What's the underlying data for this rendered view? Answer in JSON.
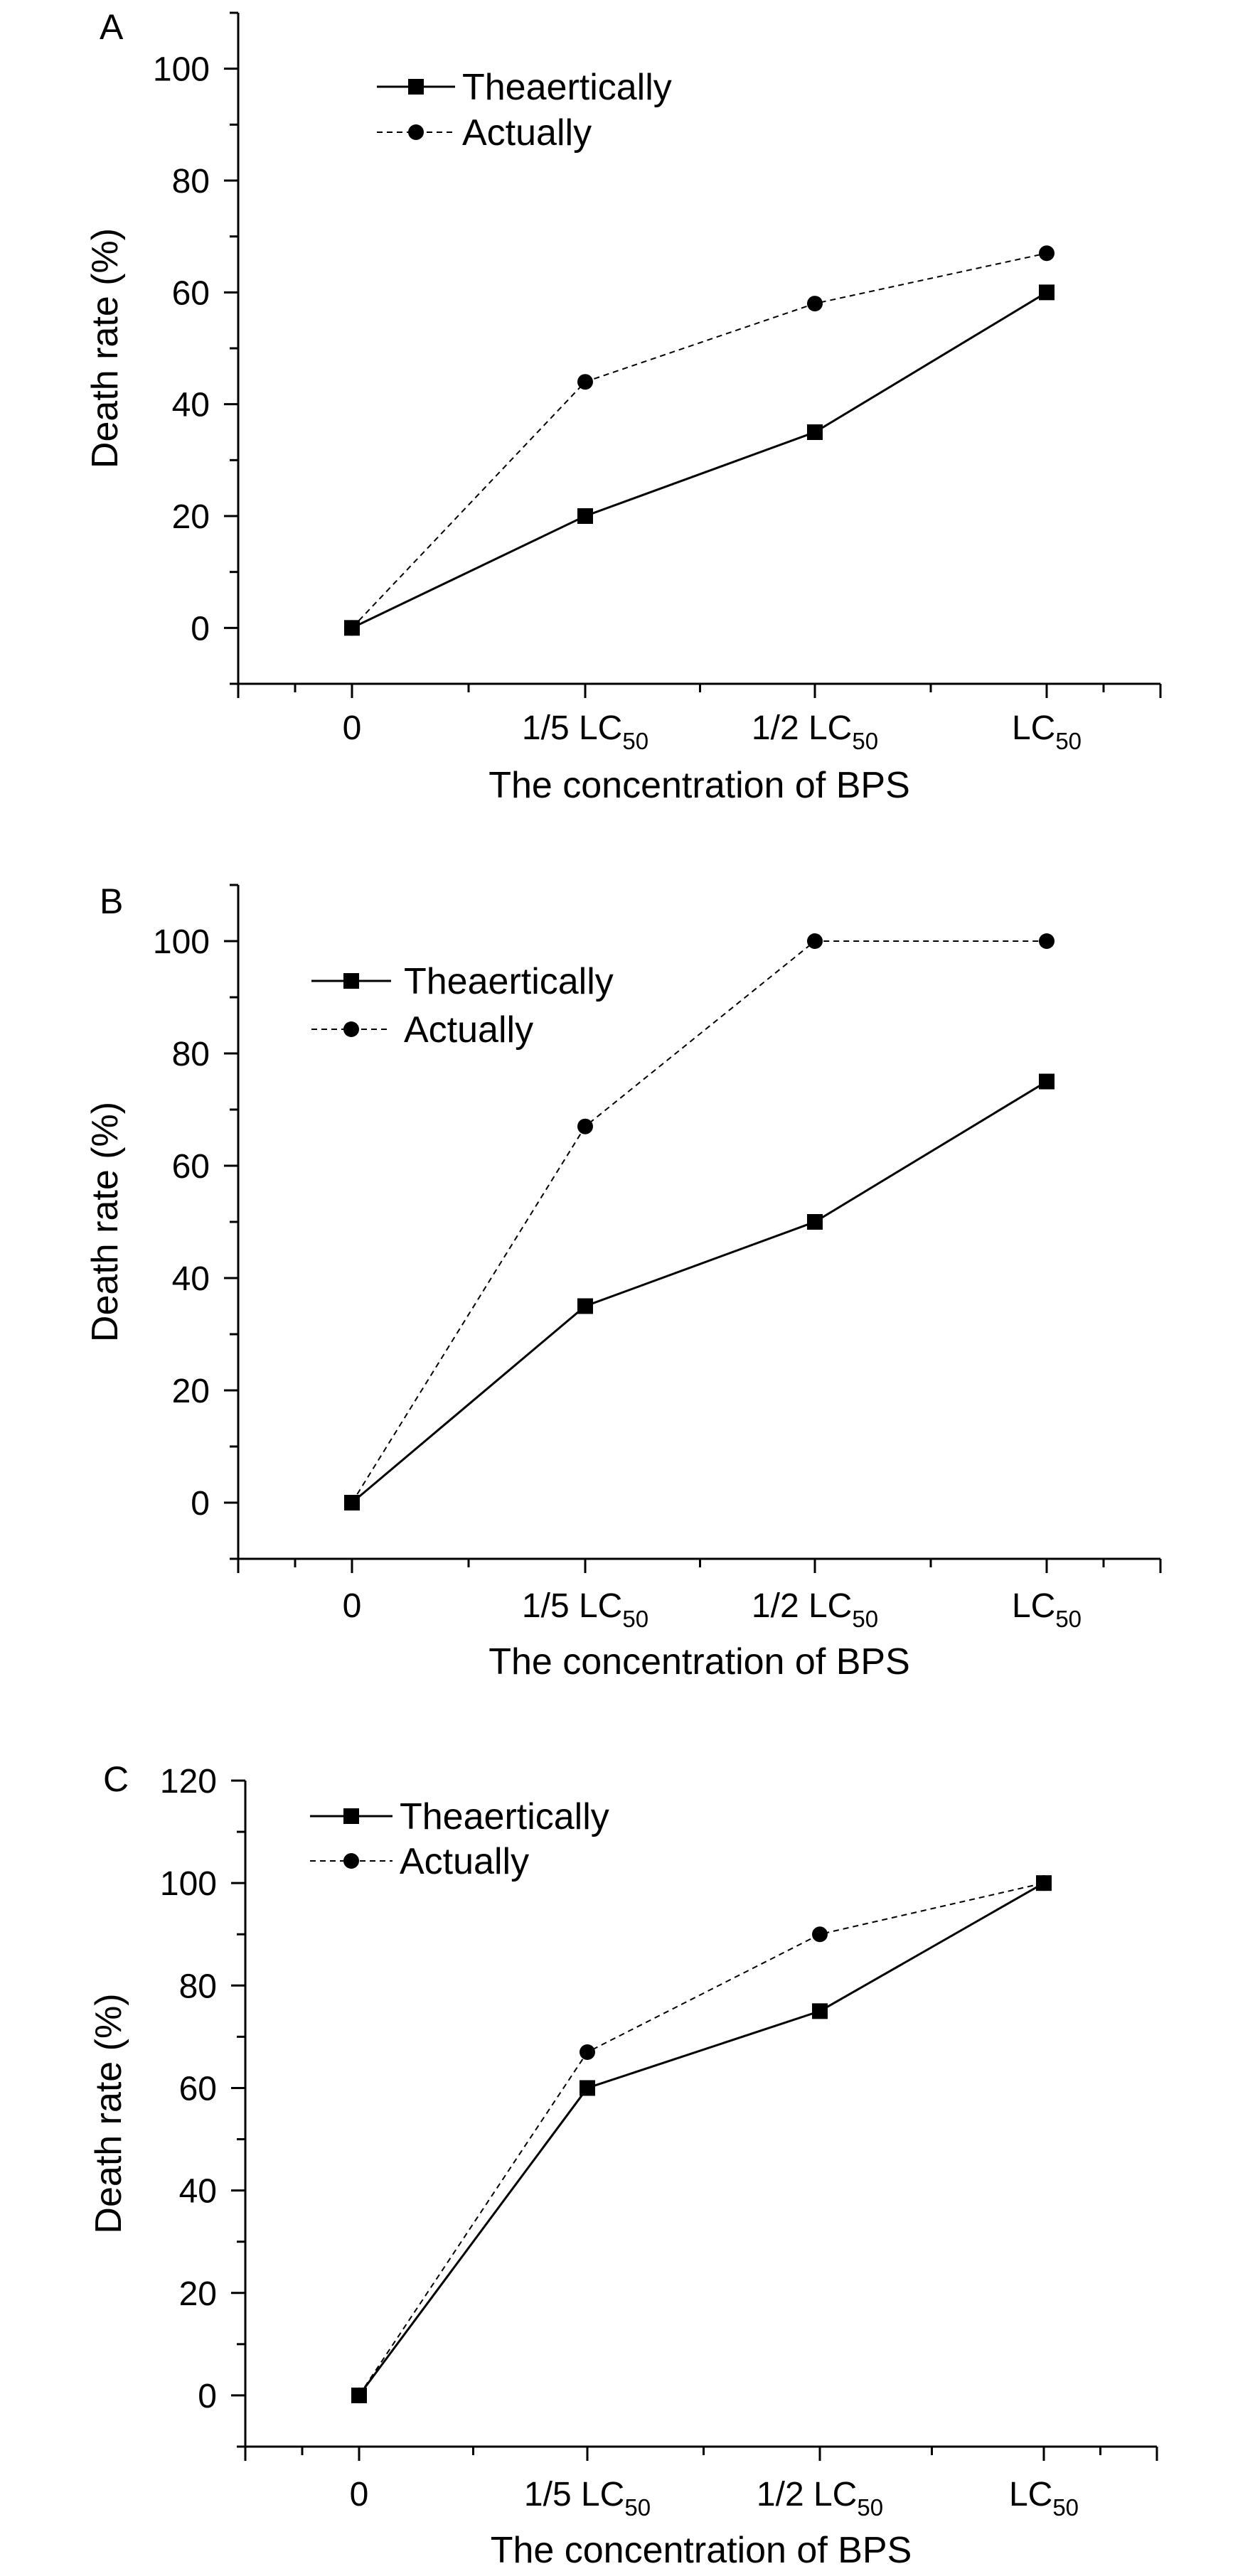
{
  "chart_data": [
    {
      "panel": "A",
      "type": "line",
      "xlabel": "The concentration of BPS",
      "ylabel": "Death rate (%)",
      "categories": [
        {
          "main": "0",
          "sub": ""
        },
        {
          "main": "1/5 LC",
          "sub": "50"
        },
        {
          "main": "1/2 LC",
          "sub": "50"
        },
        {
          "main": "LC",
          "sub": "50"
        }
      ],
      "ylim": [
        -10,
        110
      ],
      "yticks": [
        "0",
        "20",
        "40",
        "60",
        "80",
        "100"
      ],
      "grid": false,
      "legend_position": "top-left",
      "series": [
        {
          "name": "Theaertically",
          "marker": "square",
          "line": "solid",
          "values": [
            0,
            20,
            35,
            60
          ]
        },
        {
          "name": "Actually",
          "marker": "circle",
          "line": "dashed",
          "values": [
            0,
            44,
            58,
            67
          ]
        }
      ]
    },
    {
      "panel": "B",
      "type": "line",
      "xlabel": "The concentration of BPS",
      "ylabel": "Death rate (%)",
      "categories": [
        {
          "main": "0",
          "sub": ""
        },
        {
          "main": "1/5 LC",
          "sub": "50"
        },
        {
          "main": "1/2 LC",
          "sub": "50"
        },
        {
          "main": "LC",
          "sub": "50"
        }
      ],
      "ylim": [
        -10,
        110
      ],
      "yticks": [
        "0",
        "20",
        "40",
        "60",
        "80",
        "100"
      ],
      "grid": false,
      "legend_position": "top-left",
      "series": [
        {
          "name": "Theaertically",
          "marker": "square",
          "line": "solid",
          "values": [
            0,
            35,
            50,
            75
          ]
        },
        {
          "name": "Actually",
          "marker": "circle",
          "line": "dashed",
          "values": [
            0,
            67,
            100,
            100
          ]
        }
      ]
    },
    {
      "panel": "C",
      "type": "line",
      "xlabel": "The concentration of BPS",
      "ylabel": "Death rate (%)",
      "categories": [
        {
          "main": "0",
          "sub": ""
        },
        {
          "main": "1/5 LC",
          "sub": "50"
        },
        {
          "main": "1/2 LC",
          "sub": "50"
        },
        {
          "main": "LC",
          "sub": "50"
        }
      ],
      "ylim": [
        -10,
        120
      ],
      "yticks": [
        "0",
        "20",
        "40",
        "60",
        "80",
        "100",
        "120"
      ],
      "grid": false,
      "legend_position": "top-left",
      "series": [
        {
          "name": "Theaertically",
          "marker": "square",
          "line": "solid",
          "values": [
            0,
            60,
            75,
            100
          ]
        },
        {
          "name": "Actually",
          "marker": "circle",
          "line": "dashed",
          "values": [
            0,
            67,
            90,
            100
          ]
        }
      ]
    }
  ]
}
